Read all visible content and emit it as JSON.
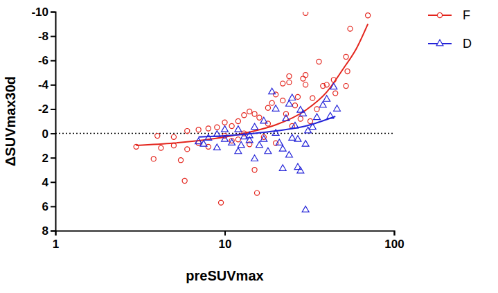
{
  "chart_data": {
    "type": "scatter",
    "x_label": "preSUVmax",
    "y_label": "ΔSUVmax30d",
    "log": "x",
    "xlim": [
      1,
      100
    ],
    "xticks": [
      1,
      10,
      100
    ],
    "ylim": [
      8,
      -10
    ],
    "yticks": [
      -10,
      -8,
      -6,
      -4,
      -2,
      0,
      2,
      4,
      6,
      8
    ],
    "hline": 0,
    "legend": "right",
    "series": [
      {
        "name": "F",
        "color": "#e3241c",
        "marker": "circle",
        "x": [
          30,
          70,
          55,
          52,
          53,
          52,
          36,
          44,
          40,
          38,
          30,
          29,
          30,
          27,
          24,
          24,
          22,
          20,
          22,
          19,
          18,
          15,
          14,
          13,
          16,
          12,
          10,
          11,
          9,
          8,
          7,
          6,
          5,
          4,
          3,
          3.8,
          4.2,
          5,
          5.5,
          5.8,
          6,
          7,
          8,
          9.5,
          15.5,
          15,
          14,
          12,
          10,
          13,
          17,
          20,
          25,
          28,
          32,
          35,
          45,
          33,
          23,
          18,
          11,
          26
        ],
        "values": [
          -9.9,
          -9.7,
          -8.6,
          -6.3,
          -5.1,
          -3.9,
          -5.9,
          -4.4,
          -4.0,
          -3.9,
          -4.8,
          -4.5,
          -4.0,
          -3.0,
          -4.2,
          -4.7,
          -4.1,
          -3.2,
          -2.7,
          -2.5,
          -2.1,
          -1.6,
          -1.8,
          -1.5,
          -1.3,
          -1.0,
          -0.9,
          -0.6,
          -0.5,
          -0.4,
          -0.3,
          -0.2,
          0.3,
          0.2,
          1.1,
          2.1,
          1.2,
          1.0,
          2.2,
          3.9,
          1.3,
          0.8,
          1.1,
          5.7,
          4.9,
          3.0,
          0.9,
          0.5,
          0.2,
          0.0,
          0.3,
          0.8,
          -0.6,
          -1.2,
          -1.0,
          -2.0,
          -3.3,
          -2.9,
          -1.6,
          -0.8,
          0.6,
          -2.3
        ],
        "fit": {
          "x": [
            3,
            5,
            10,
            15,
            20,
            30,
            40,
            50,
            60,
            70
          ],
          "values": [
            1.0,
            0.8,
            0.3,
            -0.2,
            -0.7,
            -1.9,
            -3.4,
            -5.3,
            -7.0,
            -9.0
          ]
        }
      },
      {
        "name": "D",
        "color": "#2424d8",
        "marker": "triangle",
        "x": [
          7,
          7.5,
          8,
          9,
          10,
          11,
          12,
          12.5,
          13,
          14,
          15,
          16,
          17,
          18,
          19,
          20,
          20,
          21,
          22,
          23,
          24,
          24,
          25,
          26,
          27,
          28,
          28,
          29,
          30,
          30,
          31,
          33,
          35,
          38,
          40,
          42,
          44,
          46,
          12,
          15,
          9,
          10,
          17,
          14,
          25,
          22,
          27
        ],
        "values": [
          0.7,
          0.9,
          0.4,
          1.2,
          0.5,
          0.8,
          1.5,
          1.0,
          0.3,
          0.6,
          2.1,
          1.0,
          0.5,
          1.5,
          -3.4,
          -2.0,
          0.0,
          0.8,
          2.9,
          -1.2,
          -2.4,
          1.8,
          0.4,
          -0.6,
          2.8,
          -1.9,
          3.1,
          -1.6,
          6.3,
          0.9,
          -0.2,
          -0.5,
          -1.3,
          -2.3,
          -2.8,
          -1.4,
          -3.8,
          -2.0,
          -0.3,
          -0.5,
          0.1,
          -0.3,
          -1.0,
          0.2,
          -2.9,
          1.3,
          0.5
        ],
        "fit": {
          "x": [
            7,
            10,
            15,
            20,
            30,
            45
          ],
          "values": [
            0.3,
            0.2,
            0.0,
            -0.2,
            -0.6,
            -1.4
          ]
        }
      }
    ]
  }
}
